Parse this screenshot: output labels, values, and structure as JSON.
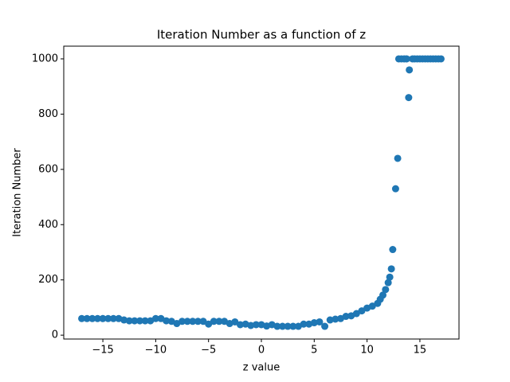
{
  "chart_data": {
    "type": "scatter",
    "title": "Iteration Number as a function of z",
    "x_label": "z value",
    "y_label": "Iteration Number",
    "color": "#1f77b4",
    "x": [
      -17,
      -16.5,
      -16,
      -15.5,
      -15,
      -14.5,
      -14,
      -13.5,
      -13,
      -12.5,
      -12,
      -11.5,
      -11,
      -10.5,
      -10,
      -9.5,
      -9,
      -8.5,
      -8,
      -7.5,
      -7,
      -6.5,
      -6,
      -5.5,
      -5,
      -4.5,
      -4,
      -3.5,
      -3,
      -2.5,
      -2,
      -1.5,
      -1,
      -0.5,
      0,
      0.5,
      1,
      1.5,
      2,
      2.5,
      3,
      3.5,
      4,
      4.5,
      5,
      5.5,
      6,
      6.5,
      7,
      7.5,
      8,
      8.5,
      9,
      9.5,
      10,
      10.5,
      11,
      11.25,
      11.5,
      11.75,
      12,
      12.15,
      12.3,
      12.43,
      12.7,
      12.9,
      13,
      13.25,
      13.5,
      13.75,
      13.94,
      14,
      14.3,
      14.5,
      14.75,
      15,
      15.25,
      15.5,
      15.75,
      16,
      16.25,
      16.5,
      16.75,
      17
    ],
    "values": [
      60,
      60,
      60,
      60,
      60,
      60,
      60,
      60,
      55,
      52,
      52,
      52,
      52,
      52,
      60,
      60,
      52,
      50,
      42,
      50,
      50,
      50,
      50,
      50,
      40,
      50,
      50,
      50,
      42,
      48,
      38,
      40,
      35,
      38,
      38,
      33,
      38,
      32,
      32,
      32,
      32,
      32,
      40,
      40,
      45,
      48,
      32,
      55,
      58,
      60,
      68,
      70,
      78,
      88,
      98,
      105,
      115,
      130,
      145,
      165,
      190,
      210,
      240,
      310,
      530,
      640,
      1000,
      1000,
      1000,
      1000,
      860,
      960,
      1000,
      1000,
      1000,
      1000,
      1000,
      1000,
      1000,
      1000,
      1000,
      1000,
      1000,
      1000
    ],
    "xlim": [
      -18.7,
      18.7
    ],
    "ylim": [
      -14,
      1046
    ],
    "xticks": [
      {
        "value": -15,
        "label": "−15"
      },
      {
        "value": -10,
        "label": "−10"
      },
      {
        "value": -5,
        "label": "−5"
      },
      0,
      5,
      10,
      15
    ],
    "yticks": [
      0,
      200,
      400,
      600,
      800,
      1000
    ],
    "grid": false
  }
}
